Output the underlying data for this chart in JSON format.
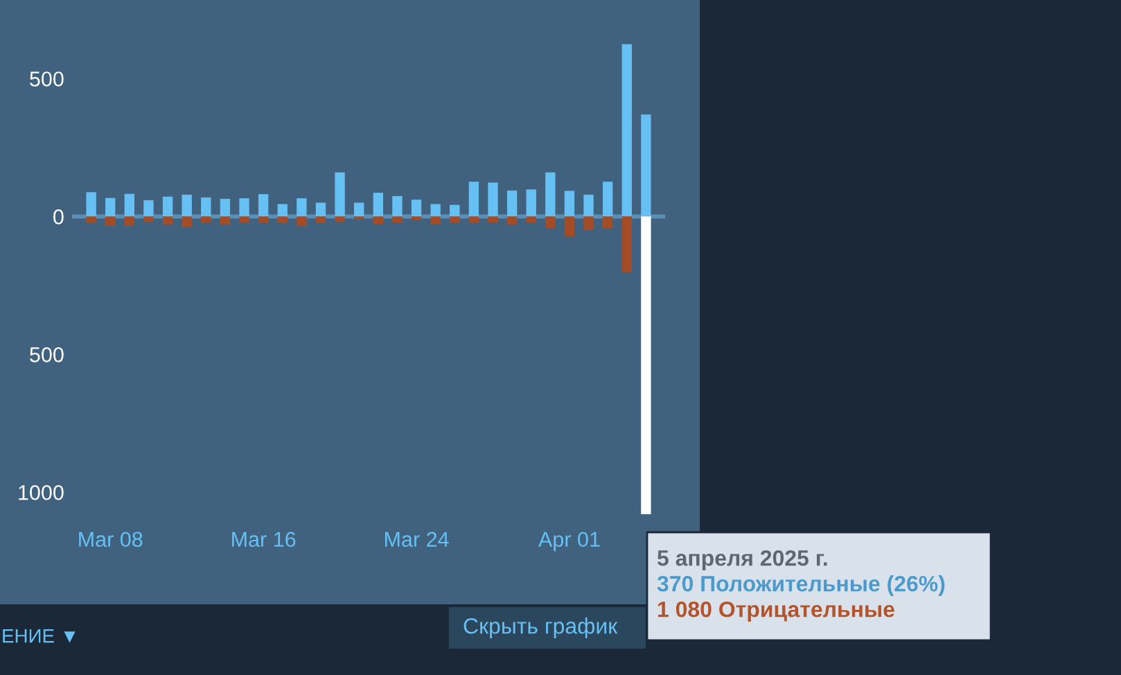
{
  "chart_data": {
    "type": "bar",
    "x": [
      "2025-03-07",
      "2025-03-08",
      "2025-03-09",
      "2025-03-10",
      "2025-03-11",
      "2025-03-12",
      "2025-03-13",
      "2025-03-14",
      "2025-03-15",
      "2025-03-16",
      "2025-03-17",
      "2025-03-18",
      "2025-03-19",
      "2025-03-20",
      "2025-03-21",
      "2025-03-22",
      "2025-03-23",
      "2025-03-24",
      "2025-03-25",
      "2025-03-26",
      "2025-03-27",
      "2025-03-28",
      "2025-03-29",
      "2025-03-30",
      "2025-03-31",
      "2025-04-01",
      "2025-04-02",
      "2025-04-03",
      "2025-04-04",
      "2025-04-05"
    ],
    "series": [
      {
        "color": "#66c0f4",
        "values": [
          88,
          67,
          82,
          59,
          72,
          79,
          69,
          64,
          66,
          81,
          45,
          66,
          50,
          160,
          50,
          86,
          74,
          61,
          45,
          42,
          126,
          123,
          94,
          98,
          160,
          93,
          79,
          126,
          625,
          370
        ]
      },
      {
        "color": "#a34c25",
        "colors": [
          "#a34c25",
          "#a34c25",
          "#a34c25",
          "#a34c25",
          "#a34c25",
          "#a34c25",
          "#a34c25",
          "#a34c25",
          "#a34c25",
          "#a34c25",
          "#a34c25",
          "#a34c25",
          "#a34c25",
          "#a34c25",
          "#a34c25",
          "#a34c25",
          "#a34c25",
          "#a34c25",
          "#a34c25",
          "#a34c25",
          "#a34c25",
          "#a34c25",
          "#a34c25",
          "#a34c25",
          "#a34c25",
          "#a34c25",
          "#a34c25",
          "#a34c25",
          "#a34c25",
          "#ffffff"
        ],
        "values": [
          -24,
          -34,
          -34,
          -20,
          -30,
          -39,
          -22,
          -30,
          -24,
          -24,
          -24,
          -35,
          -24,
          -20,
          -10,
          -27,
          -22,
          -12,
          -29,
          -22,
          -22,
          -22,
          -30,
          -24,
          -42,
          -72,
          -49,
          -42,
          -202,
          -1080
        ]
      }
    ],
    "ylim": [
      -1100,
      760
    ],
    "yticks": [
      {
        "value": 500,
        "label": "500"
      },
      0,
      {
        "value": -500,
        "label": "500"
      },
      {
        "value": -1000,
        "label": "1000"
      }
    ],
    "xlim": [
      "2025-03-06",
      "2025-04-06"
    ],
    "xticks": [
      {
        "value": "2025-03-08",
        "label": "Mar 08"
      },
      {
        "value": "2025-03-16",
        "label": "Mar 16"
      },
      {
        "value": "2025-03-24",
        "label": "Mar 24"
      },
      {
        "value": "2025-04-01",
        "label": "Apr 01"
      }
    ],
    "ref_lines": [
      {
        "axis": "y",
        "value": 0,
        "color": "#5b8fb5"
      }
    ],
    "grid": false,
    "stacked": true,
    "annotations": [
      "5 апреля 2025 г.",
      "370 Положительные (26%)",
      "1 080 Отрицательные",
      "Скрыть график",
      "ЕНИЕ ▼"
    ]
  }
}
